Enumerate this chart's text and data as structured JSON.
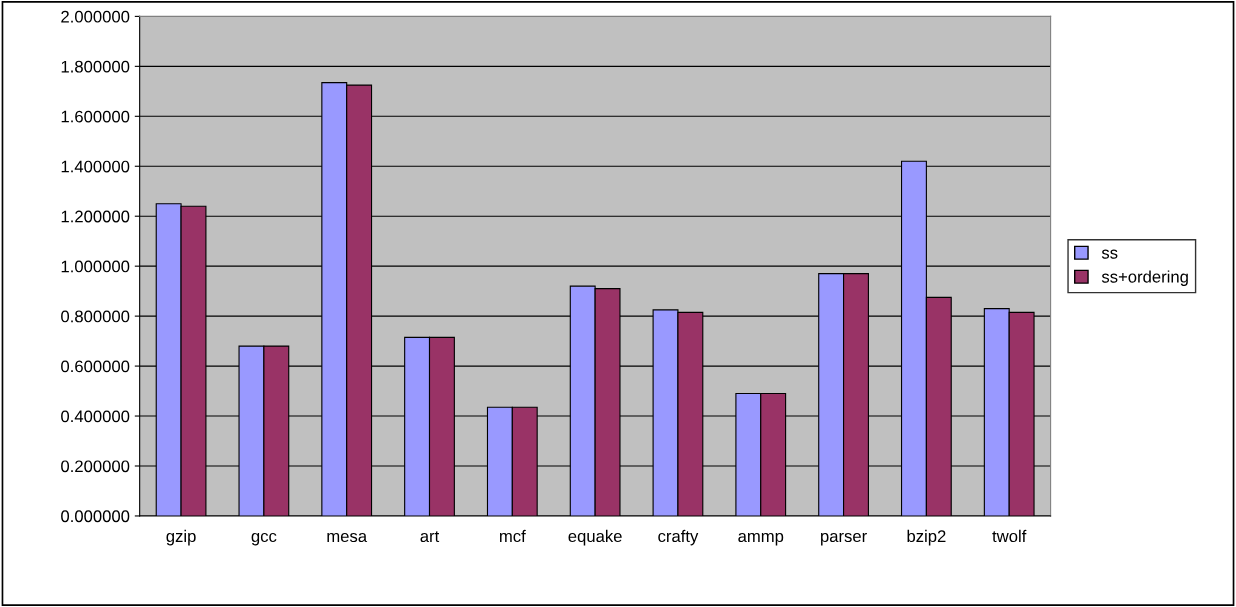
{
  "chart_data": {
    "type": "bar",
    "categories": [
      "gzip",
      "gcc",
      "mesa",
      "art",
      "mcf",
      "equake",
      "crafty",
      "ammp",
      "parser",
      "bzip2",
      "twolf"
    ],
    "series": [
      {
        "name": "ss",
        "color": "#9999ff",
        "values": [
          1.25,
          0.68,
          1.735,
          0.715,
          0.435,
          0.92,
          0.825,
          0.49,
          0.97,
          1.42,
          0.83
        ]
      },
      {
        "name": "ss+ordering",
        "color": "#993366",
        "values": [
          1.24,
          0.68,
          1.725,
          0.715,
          0.435,
          0.91,
          0.815,
          0.49,
          0.97,
          0.875,
          0.815
        ]
      }
    ],
    "ylim": [
      0,
      2
    ],
    "yticks": [
      {
        "value": 0,
        "label": "0.000000"
      },
      {
        "value": 0.2,
        "label": "0.200000"
      },
      {
        "value": 0.4,
        "label": "0.400000"
      },
      {
        "value": 0.6,
        "label": "0.600000"
      },
      {
        "value": 0.8,
        "label": "0.800000"
      },
      {
        "value": 1.0,
        "label": "1.000000"
      },
      {
        "value": 1.2,
        "label": "1.200000"
      },
      {
        "value": 1.4,
        "label": "1.400000"
      },
      {
        "value": 1.6,
        "label": "1.600000"
      },
      {
        "value": 1.8,
        "label": "1.800000"
      },
      {
        "value": 2.0,
        "label": "2.000000"
      }
    ],
    "grid": "y",
    "legend": "right"
  }
}
